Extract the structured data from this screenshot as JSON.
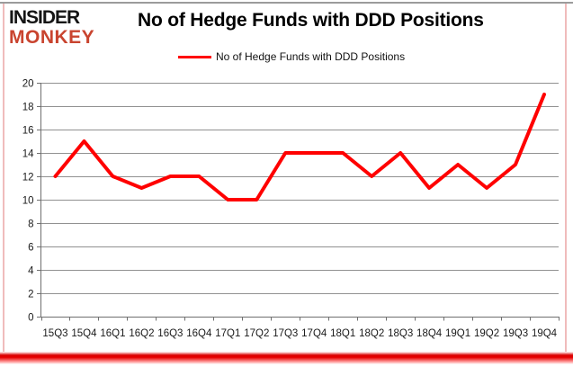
{
  "logo": {
    "line1": "INSIDER",
    "line2": "MONKEY"
  },
  "header": {
    "title": "No of Hedge Funds with DDD Positions"
  },
  "legend": {
    "label": "No of Hedge Funds with DDD Positions"
  },
  "colors": {
    "line": "#ff0000",
    "logo_black": "#151515",
    "logo_red": "#c9442f",
    "grid": "#919191",
    "axis": "#6f6f6f",
    "frame_pink": "#f0bcbc",
    "frame_gray": "#9b9b9b",
    "bottom_glow": "#e60000"
  },
  "chart_data": {
    "type": "line",
    "title": "No of Hedge Funds with DDD Positions",
    "categories": [
      "15Q3",
      "15Q4",
      "16Q1",
      "16Q2",
      "16Q3",
      "16Q4",
      "17Q1",
      "17Q2",
      "17Q3",
      "17Q4",
      "18Q1",
      "18Q2",
      "18Q3",
      "18Q4",
      "19Q1",
      "19Q2",
      "19Q3",
      "19Q4"
    ],
    "series": [
      {
        "name": "No of Hedge Funds with DDD Positions",
        "color": "#ff0000",
        "values": [
          12,
          15,
          12,
          11,
          12,
          12,
          10,
          10,
          14,
          14,
          14,
          12,
          14,
          11,
          13,
          11,
          13,
          19
        ]
      }
    ],
    "xlabel": "",
    "ylabel": "",
    "ylim": [
      0,
      20
    ],
    "ytick_step": 2,
    "grid": true,
    "legend_position": "top-center"
  }
}
